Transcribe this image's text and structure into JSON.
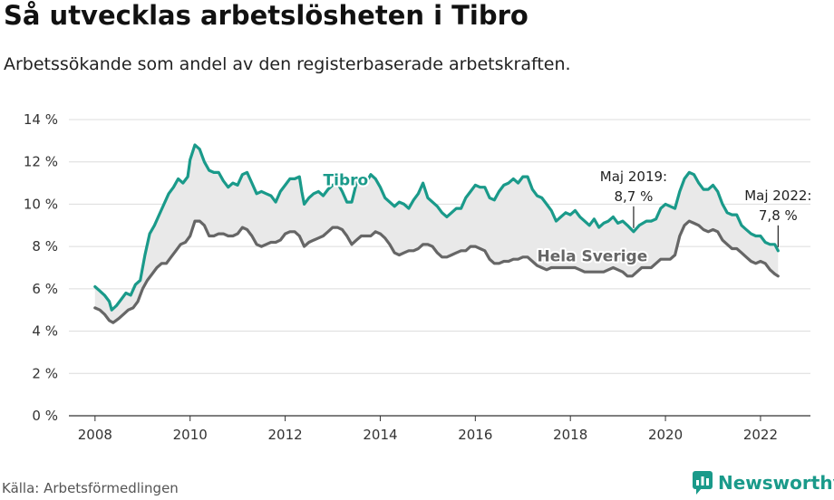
{
  "title": "Så utvecklas arbetslösheten i Tibro",
  "subtitle": "Arbetssökande som andel av den registerbaserade arbetskraften.",
  "source": "Källa: Arbetsförmedlingen",
  "brand": "Newsworthy",
  "colors": {
    "tibro": "#1a9a8a",
    "sverige": "#666666",
    "fill": "#e9e9e9",
    "brand": "#1a9a8a"
  },
  "chart_data": {
    "type": "line",
    "xlim": [
      2007.45,
      2023.05
    ],
    "ylim": [
      0,
      14
    ],
    "yticks": [
      0,
      2,
      4,
      6,
      8,
      10,
      12,
      14
    ],
    "ytick_labels": [
      "0 %",
      "2 %",
      "4 %",
      "6 %",
      "8 %",
      "10 %",
      "12 %",
      "14 %"
    ],
    "xticks": [
      2008,
      2010,
      2012,
      2014,
      2016,
      2018,
      2020,
      2022
    ],
    "xtick_labels": [
      "2008",
      "2010",
      "2012",
      "2014",
      "2016",
      "2018",
      "2020",
      "2022"
    ],
    "series": [
      {
        "name": "Tibro",
        "points": [
          [
            2008.0,
            6.1
          ],
          [
            2008.1,
            5.9
          ],
          [
            2008.2,
            5.7
          ],
          [
            2008.3,
            5.4
          ],
          [
            2008.35,
            5.0
          ],
          [
            2008.45,
            5.2
          ],
          [
            2008.55,
            5.5
          ],
          [
            2008.65,
            5.8
          ],
          [
            2008.75,
            5.7
          ],
          [
            2008.85,
            6.2
          ],
          [
            2008.95,
            6.4
          ],
          [
            2009.05,
            7.6
          ],
          [
            2009.15,
            8.6
          ],
          [
            2009.25,
            9.0
          ],
          [
            2009.35,
            9.5
          ],
          [
            2009.45,
            10.0
          ],
          [
            2009.55,
            10.5
          ],
          [
            2009.65,
            10.8
          ],
          [
            2009.75,
            11.2
          ],
          [
            2009.85,
            11.0
          ],
          [
            2009.95,
            11.3
          ],
          [
            2010.0,
            12.1
          ],
          [
            2010.1,
            12.8
          ],
          [
            2010.2,
            12.6
          ],
          [
            2010.3,
            12.0
          ],
          [
            2010.4,
            11.6
          ],
          [
            2010.5,
            11.5
          ],
          [
            2010.6,
            11.5
          ],
          [
            2010.7,
            11.1
          ],
          [
            2010.8,
            10.8
          ],
          [
            2010.9,
            11.0
          ],
          [
            2011.0,
            10.9
          ],
          [
            2011.1,
            11.4
          ],
          [
            2011.2,
            11.5
          ],
          [
            2011.3,
            11.0
          ],
          [
            2011.4,
            10.5
          ],
          [
            2011.5,
            10.6
          ],
          [
            2011.6,
            10.5
          ],
          [
            2011.7,
            10.4
          ],
          [
            2011.8,
            10.1
          ],
          [
            2011.9,
            10.6
          ],
          [
            2012.0,
            10.9
          ],
          [
            2012.1,
            11.2
          ],
          [
            2012.2,
            11.2
          ],
          [
            2012.3,
            11.3
          ],
          [
            2012.35,
            10.6
          ],
          [
            2012.4,
            10.0
          ],
          [
            2012.5,
            10.3
          ],
          [
            2012.6,
            10.5
          ],
          [
            2012.7,
            10.6
          ],
          [
            2012.8,
            10.4
          ],
          [
            2012.9,
            10.7
          ],
          [
            2013.0,
            10.9
          ],
          [
            2013.1,
            11.0
          ],
          [
            2013.2,
            10.6
          ],
          [
            2013.3,
            10.1
          ],
          [
            2013.4,
            10.1
          ],
          [
            2013.5,
            11.0
          ],
          [
            2013.6,
            11.2
          ],
          [
            2013.7,
            11.0
          ],
          [
            2013.8,
            11.4
          ],
          [
            2013.9,
            11.2
          ],
          [
            2014.0,
            10.8
          ],
          [
            2014.1,
            10.3
          ],
          [
            2014.2,
            10.1
          ],
          [
            2014.3,
            9.9
          ],
          [
            2014.4,
            10.1
          ],
          [
            2014.5,
            10.0
          ],
          [
            2014.6,
            9.8
          ],
          [
            2014.7,
            10.2
          ],
          [
            2014.8,
            10.5
          ],
          [
            2014.9,
            11.0
          ],
          [
            2015.0,
            10.3
          ],
          [
            2015.1,
            10.1
          ],
          [
            2015.2,
            9.9
          ],
          [
            2015.3,
            9.6
          ],
          [
            2015.4,
            9.4
          ],
          [
            2015.5,
            9.6
          ],
          [
            2015.6,
            9.8
          ],
          [
            2015.7,
            9.8
          ],
          [
            2015.8,
            10.3
          ],
          [
            2015.9,
            10.6
          ],
          [
            2016.0,
            10.9
          ],
          [
            2016.1,
            10.8
          ],
          [
            2016.2,
            10.8
          ],
          [
            2016.3,
            10.3
          ],
          [
            2016.4,
            10.2
          ],
          [
            2016.5,
            10.6
          ],
          [
            2016.6,
            10.9
          ],
          [
            2016.7,
            11.0
          ],
          [
            2016.8,
            11.2
          ],
          [
            2016.9,
            11.0
          ],
          [
            2017.0,
            11.3
          ],
          [
            2017.1,
            11.3
          ],
          [
            2017.2,
            10.7
          ],
          [
            2017.3,
            10.4
          ],
          [
            2017.4,
            10.3
          ],
          [
            2017.5,
            10.0
          ],
          [
            2017.6,
            9.7
          ],
          [
            2017.7,
            9.2
          ],
          [
            2017.8,
            9.4
          ],
          [
            2017.9,
            9.6
          ],
          [
            2018.0,
            9.5
          ],
          [
            2018.1,
            9.7
          ],
          [
            2018.2,
            9.4
          ],
          [
            2018.3,
            9.2
          ],
          [
            2018.4,
            9.0
          ],
          [
            2018.5,
            9.3
          ],
          [
            2018.6,
            8.9
          ],
          [
            2018.7,
            9.1
          ],
          [
            2018.8,
            9.2
          ],
          [
            2018.9,
            9.4
          ],
          [
            2019.0,
            9.1
          ],
          [
            2019.1,
            9.2
          ],
          [
            2019.2,
            9.0
          ],
          [
            2019.33,
            8.7
          ],
          [
            2019.45,
            9.0
          ],
          [
            2019.6,
            9.2
          ],
          [
            2019.7,
            9.2
          ],
          [
            2019.8,
            9.3
          ],
          [
            2019.9,
            9.8
          ],
          [
            2020.0,
            10.0
          ],
          [
            2020.1,
            9.9
          ],
          [
            2020.2,
            9.8
          ],
          [
            2020.3,
            10.6
          ],
          [
            2020.4,
            11.2
          ],
          [
            2020.5,
            11.5
          ],
          [
            2020.6,
            11.4
          ],
          [
            2020.7,
            11.0
          ],
          [
            2020.8,
            10.7
          ],
          [
            2020.9,
            10.7
          ],
          [
            2021.0,
            10.9
          ],
          [
            2021.1,
            10.6
          ],
          [
            2021.2,
            10.0
          ],
          [
            2021.3,
            9.6
          ],
          [
            2021.4,
            9.5
          ],
          [
            2021.5,
            9.5
          ],
          [
            2021.6,
            9.0
          ],
          [
            2021.7,
            8.8
          ],
          [
            2021.8,
            8.6
          ],
          [
            2021.9,
            8.5
          ],
          [
            2022.0,
            8.5
          ],
          [
            2022.1,
            8.2
          ],
          [
            2022.2,
            8.1
          ],
          [
            2022.3,
            8.1
          ],
          [
            2022.37,
            7.8
          ]
        ]
      },
      {
        "name": "Hela Sverige",
        "points": [
          [
            2008.0,
            5.1
          ],
          [
            2008.1,
            5.0
          ],
          [
            2008.2,
            4.8
          ],
          [
            2008.3,
            4.5
          ],
          [
            2008.38,
            4.4
          ],
          [
            2008.5,
            4.6
          ],
          [
            2008.6,
            4.8
          ],
          [
            2008.7,
            5.0
          ],
          [
            2008.8,
            5.1
          ],
          [
            2008.9,
            5.4
          ],
          [
            2009.0,
            6.0
          ],
          [
            2009.1,
            6.4
          ],
          [
            2009.2,
            6.7
          ],
          [
            2009.3,
            7.0
          ],
          [
            2009.4,
            7.2
          ],
          [
            2009.5,
            7.2
          ],
          [
            2009.6,
            7.5
          ],
          [
            2009.7,
            7.8
          ],
          [
            2009.8,
            8.1
          ],
          [
            2009.9,
            8.2
          ],
          [
            2010.0,
            8.5
          ],
          [
            2010.1,
            9.2
          ],
          [
            2010.2,
            9.2
          ],
          [
            2010.3,
            9.0
          ],
          [
            2010.4,
            8.5
          ],
          [
            2010.5,
            8.5
          ],
          [
            2010.6,
            8.6
          ],
          [
            2010.7,
            8.6
          ],
          [
            2010.8,
            8.5
          ],
          [
            2010.9,
            8.5
          ],
          [
            2011.0,
            8.6
          ],
          [
            2011.1,
            8.9
          ],
          [
            2011.2,
            8.8
          ],
          [
            2011.3,
            8.5
          ],
          [
            2011.4,
            8.1
          ],
          [
            2011.5,
            8.0
          ],
          [
            2011.6,
            8.1
          ],
          [
            2011.7,
            8.2
          ],
          [
            2011.8,
            8.2
          ],
          [
            2011.9,
            8.3
          ],
          [
            2012.0,
            8.6
          ],
          [
            2012.1,
            8.7
          ],
          [
            2012.2,
            8.7
          ],
          [
            2012.3,
            8.5
          ],
          [
            2012.4,
            8.0
          ],
          [
            2012.5,
            8.2
          ],
          [
            2012.6,
            8.3
          ],
          [
            2012.7,
            8.4
          ],
          [
            2012.8,
            8.5
          ],
          [
            2012.9,
            8.7
          ],
          [
            2013.0,
            8.9
          ],
          [
            2013.1,
            8.9
          ],
          [
            2013.2,
            8.8
          ],
          [
            2013.3,
            8.5
          ],
          [
            2013.4,
            8.1
          ],
          [
            2013.5,
            8.3
          ],
          [
            2013.6,
            8.5
          ],
          [
            2013.7,
            8.5
          ],
          [
            2013.8,
            8.5
          ],
          [
            2013.9,
            8.7
          ],
          [
            2014.0,
            8.6
          ],
          [
            2014.1,
            8.4
          ],
          [
            2014.2,
            8.1
          ],
          [
            2014.3,
            7.7
          ],
          [
            2014.4,
            7.6
          ],
          [
            2014.5,
            7.7
          ],
          [
            2014.6,
            7.8
          ],
          [
            2014.7,
            7.8
          ],
          [
            2014.8,
            7.9
          ],
          [
            2014.9,
            8.1
          ],
          [
            2015.0,
            8.1
          ],
          [
            2015.1,
            8.0
          ],
          [
            2015.2,
            7.7
          ],
          [
            2015.3,
            7.5
          ],
          [
            2015.4,
            7.5
          ],
          [
            2015.5,
            7.6
          ],
          [
            2015.6,
            7.7
          ],
          [
            2015.7,
            7.8
          ],
          [
            2015.8,
            7.8
          ],
          [
            2015.9,
            8.0
          ],
          [
            2016.0,
            8.0
          ],
          [
            2016.1,
            7.9
          ],
          [
            2016.2,
            7.8
          ],
          [
            2016.3,
            7.4
          ],
          [
            2016.4,
            7.2
          ],
          [
            2016.5,
            7.2
          ],
          [
            2016.6,
            7.3
          ],
          [
            2016.7,
            7.3
          ],
          [
            2016.8,
            7.4
          ],
          [
            2016.9,
            7.4
          ],
          [
            2017.0,
            7.5
          ],
          [
            2017.1,
            7.5
          ],
          [
            2017.2,
            7.3
          ],
          [
            2017.3,
            7.1
          ],
          [
            2017.4,
            7.0
          ],
          [
            2017.5,
            6.9
          ],
          [
            2017.6,
            7.0
          ],
          [
            2017.7,
            7.0
          ],
          [
            2017.8,
            7.0
          ],
          [
            2017.9,
            7.0
          ],
          [
            2018.0,
            7.0
          ],
          [
            2018.1,
            7.0
          ],
          [
            2018.2,
            6.9
          ],
          [
            2018.3,
            6.8
          ],
          [
            2018.4,
            6.8
          ],
          [
            2018.5,
            6.8
          ],
          [
            2018.6,
            6.8
          ],
          [
            2018.7,
            6.8
          ],
          [
            2018.8,
            6.9
          ],
          [
            2018.9,
            7.0
          ],
          [
            2019.0,
            6.9
          ],
          [
            2019.1,
            6.8
          ],
          [
            2019.2,
            6.6
          ],
          [
            2019.3,
            6.6
          ],
          [
            2019.4,
            6.8
          ],
          [
            2019.5,
            7.0
          ],
          [
            2019.6,
            7.0
          ],
          [
            2019.7,
            7.0
          ],
          [
            2019.8,
            7.2
          ],
          [
            2019.9,
            7.4
          ],
          [
            2020.0,
            7.4
          ],
          [
            2020.1,
            7.4
          ],
          [
            2020.2,
            7.6
          ],
          [
            2020.3,
            8.5
          ],
          [
            2020.4,
            9.0
          ],
          [
            2020.5,
            9.2
          ],
          [
            2020.6,
            9.1
          ],
          [
            2020.7,
            9.0
          ],
          [
            2020.8,
            8.8
          ],
          [
            2020.9,
            8.7
          ],
          [
            2021.0,
            8.8
          ],
          [
            2021.1,
            8.7
          ],
          [
            2021.2,
            8.3
          ],
          [
            2021.3,
            8.1
          ],
          [
            2021.4,
            7.9
          ],
          [
            2021.5,
            7.9
          ],
          [
            2021.6,
            7.7
          ],
          [
            2021.7,
            7.5
          ],
          [
            2021.8,
            7.3
          ],
          [
            2021.9,
            7.2
          ],
          [
            2022.0,
            7.3
          ],
          [
            2022.1,
            7.2
          ],
          [
            2022.2,
            6.9
          ],
          [
            2022.3,
            6.7
          ],
          [
            2022.37,
            6.6
          ]
        ]
      }
    ],
    "series_labels": [
      {
        "text": "Tibro",
        "x": 2012.8,
        "y": 10.9,
        "series": "Tibro"
      },
      {
        "text": "Hela Sverige",
        "x": 2017.3,
        "y": 7.3,
        "series": "Hela Sverige"
      }
    ],
    "annotations": [
      {
        "lines": [
          "Maj 2019:",
          "8,7 %"
        ],
        "x": 2019.33,
        "y": 8.7
      },
      {
        "lines": [
          "Maj 2022:",
          "7,8 %"
        ],
        "x": 2022.37,
        "y": 7.8
      }
    ],
    "grid": true,
    "fill_between": true
  }
}
